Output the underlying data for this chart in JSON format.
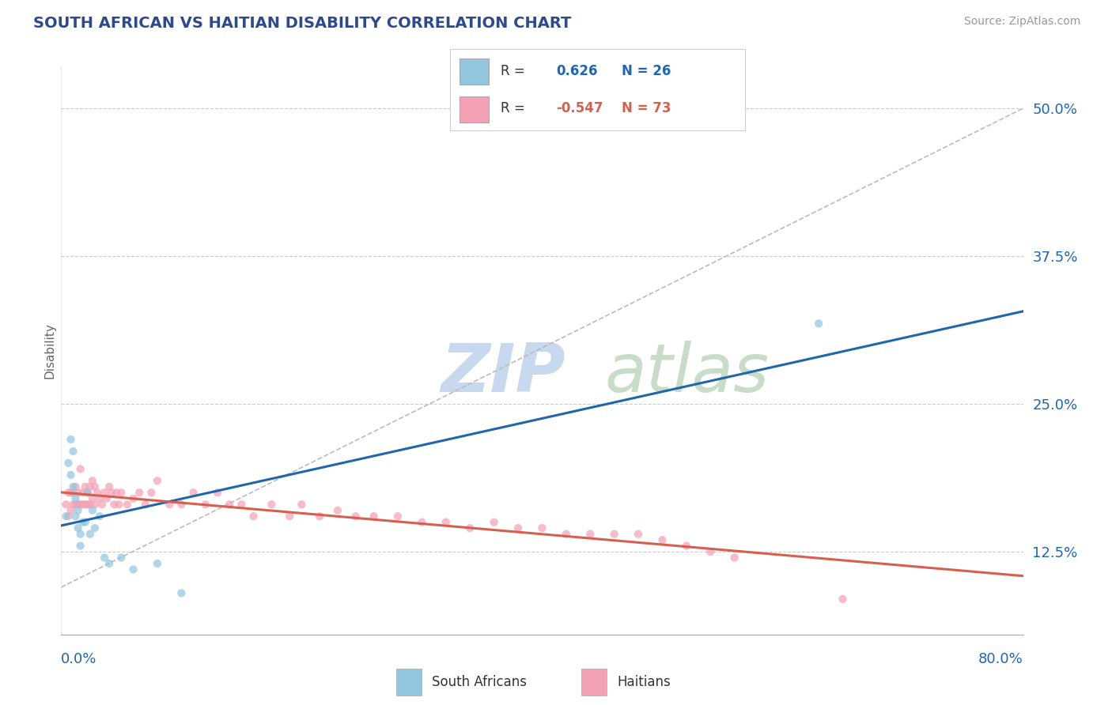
{
  "title": "SOUTH AFRICAN VS HAITIAN DISABILITY CORRELATION CHART",
  "source": "Source: ZipAtlas.com",
  "ylabel": "Disability",
  "xlim": [
    0.0,
    0.8
  ],
  "ylim": [
    0.055,
    0.535
  ],
  "yticks": [
    0.125,
    0.25,
    0.375,
    0.5
  ],
  "ytick_labels": [
    "12.5%",
    "25.0%",
    "37.5%",
    "50.0%"
  ],
  "r_blue": "0.626",
  "n_blue": "26",
  "r_pink": "-0.547",
  "n_pink": "73",
  "blue_scatter_color": "#92c5de",
  "pink_scatter_color": "#f4a0b5",
  "blue_line_color": "#2166ac",
  "pink_line_color": "#d6604d",
  "ref_line_color": "#bbbbbb",
  "grid_color": "#cccccc",
  "title_color": "#2e4a8c",
  "watermark_color": "#dde8f5",
  "legend_label_blue": "South Africans",
  "legend_label_pink": "Haitians",
  "blue_x": [
    0.004,
    0.006,
    0.008,
    0.008,
    0.01,
    0.01,
    0.012,
    0.012,
    0.014,
    0.014,
    0.016,
    0.016,
    0.018,
    0.02,
    0.022,
    0.024,
    0.026,
    0.028,
    0.032,
    0.036,
    0.04,
    0.05,
    0.06,
    0.08,
    0.1,
    0.63
  ],
  "blue_y": [
    0.155,
    0.2,
    0.22,
    0.19,
    0.21,
    0.18,
    0.17,
    0.155,
    0.16,
    0.145,
    0.14,
    0.13,
    0.15,
    0.15,
    0.175,
    0.14,
    0.16,
    0.145,
    0.155,
    0.12,
    0.115,
    0.12,
    0.11,
    0.115,
    0.09,
    0.318
  ],
  "pink_x": [
    0.004,
    0.006,
    0.006,
    0.008,
    0.008,
    0.01,
    0.01,
    0.012,
    0.012,
    0.014,
    0.014,
    0.016,
    0.016,
    0.018,
    0.018,
    0.02,
    0.02,
    0.022,
    0.022,
    0.024,
    0.024,
    0.026,
    0.026,
    0.028,
    0.028,
    0.03,
    0.032,
    0.034,
    0.036,
    0.038,
    0.04,
    0.042,
    0.044,
    0.046,
    0.048,
    0.05,
    0.055,
    0.06,
    0.065,
    0.07,
    0.075,
    0.08,
    0.09,
    0.1,
    0.11,
    0.12,
    0.13,
    0.14,
    0.15,
    0.16,
    0.175,
    0.19,
    0.2,
    0.215,
    0.23,
    0.245,
    0.26,
    0.28,
    0.3,
    0.32,
    0.34,
    0.36,
    0.38,
    0.4,
    0.42,
    0.44,
    0.46,
    0.48,
    0.5,
    0.52,
    0.54,
    0.56,
    0.65
  ],
  "pink_y": [
    0.165,
    0.175,
    0.155,
    0.175,
    0.16,
    0.175,
    0.165,
    0.18,
    0.165,
    0.175,
    0.165,
    0.195,
    0.165,
    0.175,
    0.165,
    0.18,
    0.165,
    0.175,
    0.165,
    0.18,
    0.165,
    0.185,
    0.17,
    0.18,
    0.165,
    0.175,
    0.17,
    0.165,
    0.175,
    0.17,
    0.18,
    0.175,
    0.165,
    0.175,
    0.165,
    0.175,
    0.165,
    0.17,
    0.175,
    0.165,
    0.175,
    0.185,
    0.165,
    0.165,
    0.175,
    0.165,
    0.175,
    0.165,
    0.165,
    0.155,
    0.165,
    0.155,
    0.165,
    0.155,
    0.16,
    0.155,
    0.155,
    0.155,
    0.15,
    0.15,
    0.145,
    0.15,
    0.145,
    0.145,
    0.14,
    0.14,
    0.14,
    0.14,
    0.135,
    0.13,
    0.125,
    0.12,
    0.085
  ]
}
